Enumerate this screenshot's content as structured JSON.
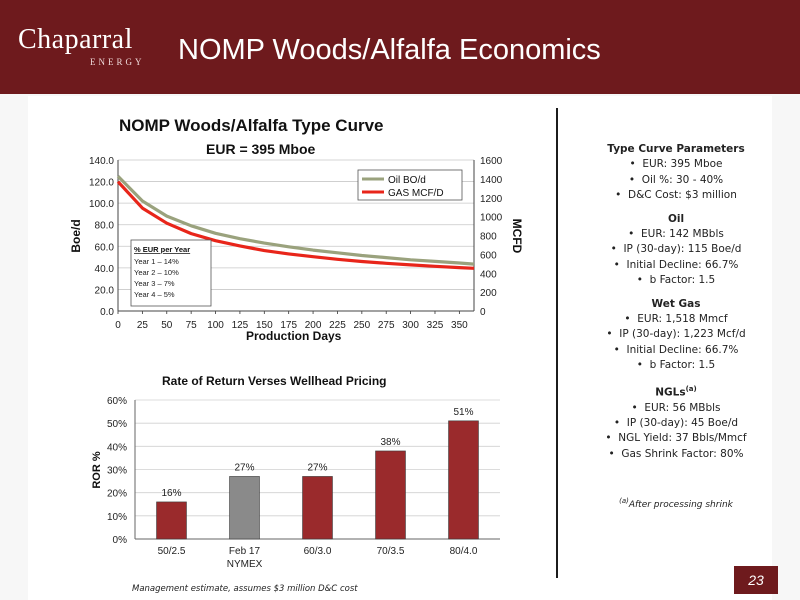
{
  "header": {
    "logo_main": "Chaparral",
    "logo_sub": "ENERGY",
    "title": "NOMP Woods/Alfalfa Economics"
  },
  "colors": {
    "brand": "#6e1a1d",
    "oil_line": "#9aa27d",
    "gas_line": "#e8251a",
    "bar": "#9a2a2c",
    "bar_highlight": "#8a8a8a"
  },
  "chart_data": [
    {
      "type": "line",
      "title": "NOMP Woods/Alfalfa Type Curve",
      "subtitle": "EUR = 395 Mboe",
      "xlabel": "Production Days",
      "ylabel": "Boe/d",
      "y2label": "MCFD",
      "xlim": [
        0,
        365
      ],
      "ylim": [
        0,
        140
      ],
      "y2lim": [
        0,
        1600
      ],
      "x_ticks": [
        "0",
        "25",
        "50",
        "75",
        "100",
        "125",
        "150",
        "175",
        "200",
        "225",
        "250",
        "275",
        "300",
        "325",
        "350"
      ],
      "y_ticks": [
        "0.0",
        "20.0",
        "40.0",
        "60.0",
        "80.0",
        "100.0",
        "120.0",
        "140.0"
      ],
      "y2_ticks": [
        "0",
        "200",
        "400",
        "600",
        "800",
        "1000",
        "1200",
        "1400",
        "1600"
      ],
      "legend_position": "top-right",
      "x": [
        0,
        25,
        50,
        75,
        100,
        125,
        150,
        175,
        200,
        225,
        250,
        275,
        300,
        325,
        350,
        365
      ],
      "series": [
        {
          "name": "Oil BO/d",
          "axis": "left",
          "values": [
            125,
            102,
            88,
            79,
            72,
            67,
            63,
            59.5,
            56.5,
            54,
            51.5,
            49.5,
            47.5,
            46,
            44.5,
            43.5
          ]
        },
        {
          "name": "GAS MCF/D",
          "axis": "right",
          "values": [
            1370,
            1090,
            930,
            820,
            745,
            690,
            640,
            605,
            575,
            548,
            525,
            505,
            488,
            474,
            460,
            452
          ]
        }
      ],
      "annotation": {
        "title": "% EUR per Year",
        "lines": [
          "Year 1 – 14%",
          "Year 2 – 10%",
          "Year 3 – 7%",
          "Year 4 – 5%"
        ]
      }
    },
    {
      "type": "bar",
      "title": "Rate of Return Verses Wellhead Pricing",
      "xlabel": "",
      "ylabel": "ROR %",
      "ylim": [
        0,
        60
      ],
      "y_ticks": [
        "0%",
        "10%",
        "20%",
        "30%",
        "40%",
        "50%",
        "60%"
      ],
      "categories": [
        "50/2.5",
        "Feb 17",
        "60/3.0",
        "70/3.5",
        "80/4.0"
      ],
      "category_sublabels": [
        "",
        "NYMEX",
        "",
        "",
        ""
      ],
      "values": [
        16,
        27,
        27,
        38,
        51
      ],
      "value_labels": [
        "16%",
        "27%",
        "27%",
        "38%",
        "51%"
      ],
      "highlight_index": 1
    }
  ],
  "params": {
    "type_curve": {
      "title": "Type Curve Parameters",
      "items": [
        "EUR: 395 Mboe",
        "Oil %: 30 - 40%",
        "D&C Cost: $3 million"
      ]
    },
    "oil": {
      "title": "Oil",
      "items": [
        "EUR: 142 MBbls",
        "IP (30-day): 115 Boe/d",
        "Initial Decline: 66.7%",
        "b Factor: 1.5"
      ]
    },
    "wet_gas": {
      "title": "Wet Gas",
      "items": [
        "EUR: 1,518 Mmcf",
        "IP (30-day): 1,223 Mcf/d",
        "Initial Decline: 66.7%",
        "b Factor: 1.5"
      ]
    },
    "ngls": {
      "title": "NGLs",
      "title_sup": "(a)",
      "items": [
        "EUR: 56 MBbls",
        "IP (30-day): 45 Boe/d",
        "NGL Yield: 37 Bbls/Mmcf",
        "Gas Shrink Factor: 80%"
      ]
    },
    "footnote_sup": "(a)",
    "footnote": "After processing shrink"
  },
  "mgmt_note": "Management estimate, assumes $3 million D&C cost",
  "page_number": "23"
}
